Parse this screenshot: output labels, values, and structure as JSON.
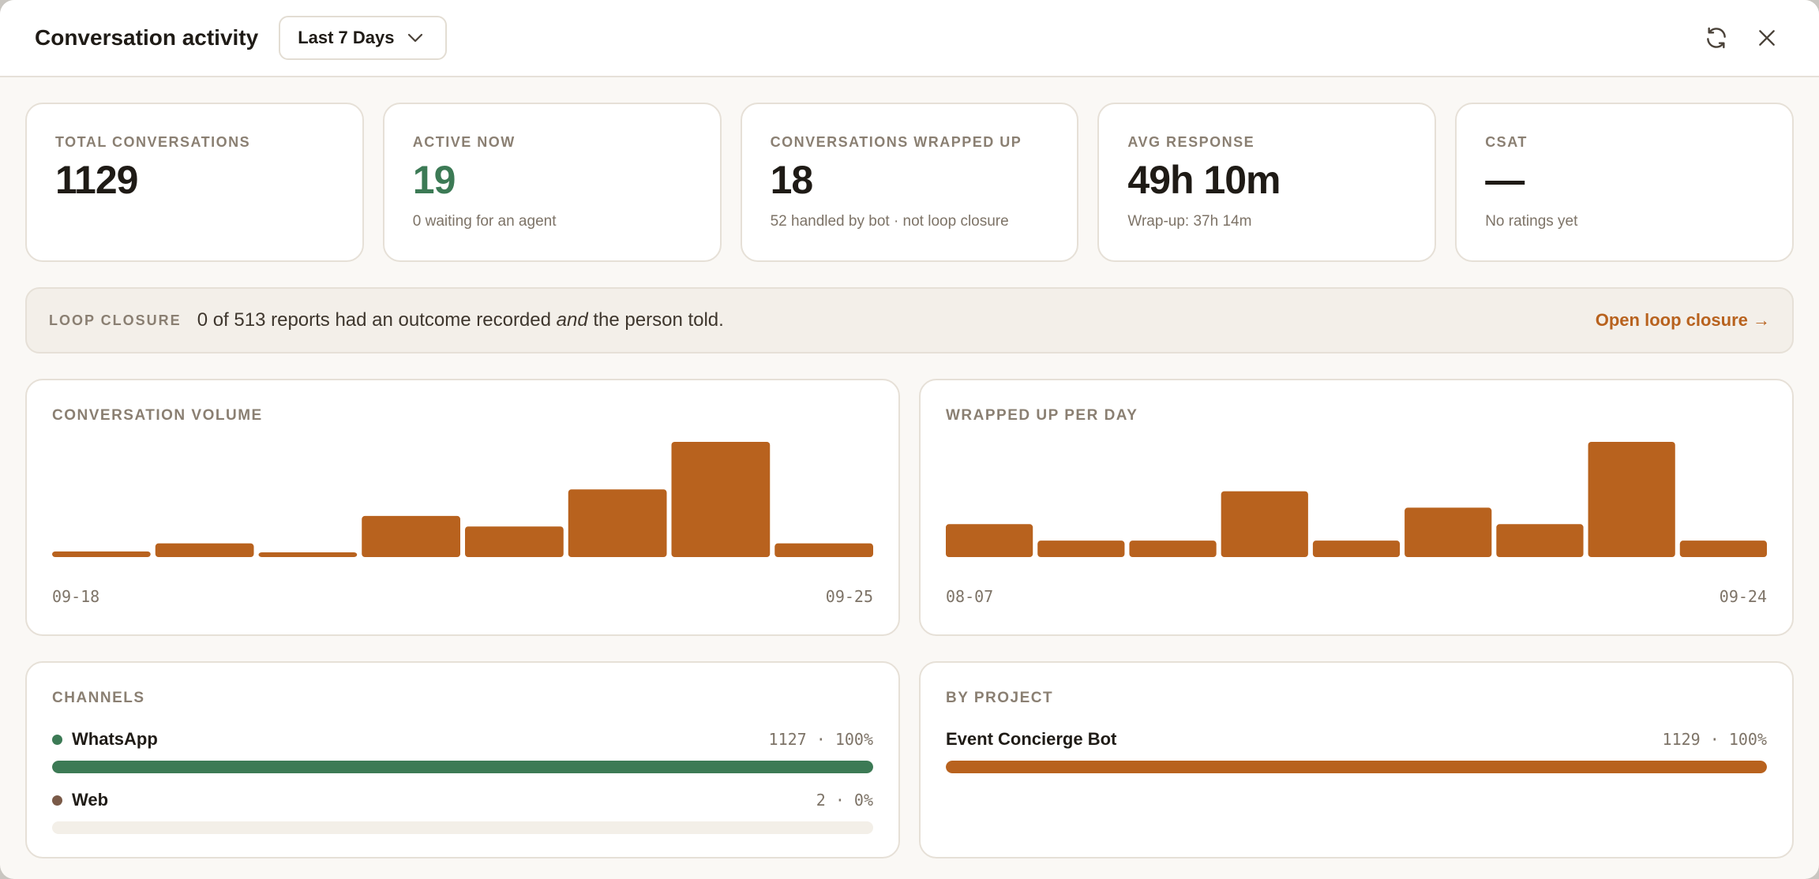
{
  "header": {
    "title": "Conversation activity",
    "range_label": "Last 7 Days"
  },
  "stats": [
    {
      "label": "TOTAL CONVERSATIONS",
      "value": "1129",
      "sub": ""
    },
    {
      "label": "ACTIVE NOW",
      "value": "19",
      "sub": "0 waiting for an agent",
      "color": "#3c7a55"
    },
    {
      "label": "CONVERSATIONS WRAPPED UP",
      "value": "18",
      "sub": "52 handled by bot · not loop closure"
    },
    {
      "label": "AVG RESPONSE",
      "value": "49h 10m",
      "sub": "Wrap-up: 37h 14m"
    },
    {
      "label": "CSAT",
      "value": "—",
      "sub": "No ratings yet"
    }
  ],
  "loop_closure": {
    "label": "LOOP CLOSURE",
    "text_before": "0 of 513 reports had an outcome recorded ",
    "text_em": "and",
    "text_after": " the person told.",
    "link": "Open loop closure →"
  },
  "colors": {
    "accent": "#b8621e",
    "whatsapp": "#3c7a55",
    "web": "#7a5a48"
  },
  "chart_data": [
    {
      "type": "bar",
      "title": "CONVERSATION VOLUME",
      "x_start_label": "09-18",
      "x_end_label": "09-25",
      "values": [
        7,
        17,
        4,
        51,
        38,
        84,
        143,
        17
      ]
    },
    {
      "type": "bar",
      "title": "WRAPPED UP PER DAY",
      "x_start_label": "08-07",
      "x_end_label": "09-24",
      "values": [
        2,
        1,
        1,
        4,
        1,
        3,
        2,
        7,
        1
      ]
    }
  ],
  "channels": {
    "label": "CHANNELS",
    "items": [
      {
        "name": "WhatsApp",
        "value": "1127 · 100%",
        "fraction": 1.0,
        "color": "#3c7a55"
      },
      {
        "name": "Web",
        "value": "2 · 0%",
        "fraction": 0.0,
        "color": "#7a5a48"
      }
    ]
  },
  "projects": {
    "label": "BY PROJECT",
    "items": [
      {
        "name": "Event Concierge Bot",
        "value": "1129 · 100%",
        "fraction": 1.0
      }
    ]
  }
}
